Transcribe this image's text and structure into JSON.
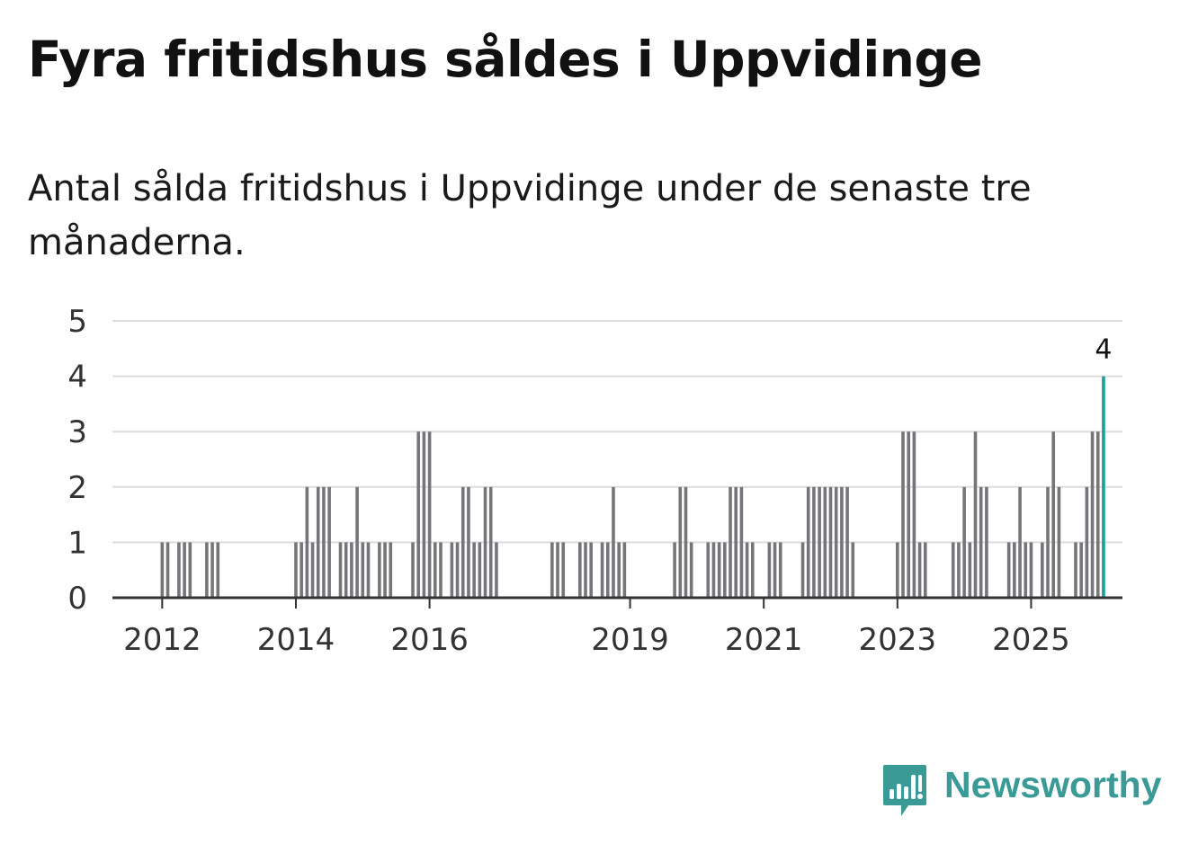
{
  "header": {
    "title": "Fyra fritidshus såldes i Uppvidinge",
    "subtitle": "Antal sålda fritidshus i Uppvidinge under de senaste tre månaderna."
  },
  "brand": {
    "name": "Newsworthy"
  },
  "colors": {
    "bar": "#76767a",
    "highlight": "#1a9e98",
    "grid": "#dddddd",
    "axis": "#333333",
    "brand": "#3a9a96"
  },
  "chart_data": {
    "type": "bar",
    "title": "Antal sålda fritidshus i Uppvidinge",
    "xlabel": "",
    "ylabel": "",
    "ylim": [
      0,
      5
    ],
    "yticks": [
      0,
      1,
      2,
      3,
      4,
      5
    ],
    "start": "2011-04",
    "x_ticks": [
      "2012",
      "2014",
      "2016",
      "2019",
      "2021",
      "2023",
      "2025"
    ],
    "values": [
      0,
      0,
      0,
      0,
      0,
      0,
      0,
      0,
      0,
      1,
      1,
      0,
      1,
      1,
      1,
      0,
      0,
      1,
      1,
      1,
      0,
      0,
      0,
      0,
      0,
      0,
      0,
      0,
      0,
      0,
      0,
      0,
      0,
      1,
      1,
      2,
      1,
      2,
      2,
      2,
      0,
      1,
      1,
      1,
      2,
      1,
      1,
      0,
      1,
      1,
      1,
      0,
      0,
      0,
      1,
      3,
      3,
      3,
      1,
      1,
      0,
      1,
      1,
      2,
      2,
      1,
      1,
      2,
      2,
      1,
      0,
      0,
      0,
      0,
      0,
      0,
      0,
      0,
      0,
      1,
      1,
      1,
      0,
      0,
      1,
      1,
      1,
      0,
      1,
      1,
      2,
      1,
      1,
      0,
      0,
      0,
      0,
      0,
      0,
      0,
      0,
      1,
      2,
      2,
      1,
      0,
      0,
      1,
      1,
      1,
      1,
      2,
      2,
      2,
      1,
      1,
      0,
      0,
      1,
      1,
      1,
      0,
      0,
      0,
      1,
      2,
      2,
      2,
      2,
      2,
      2,
      2,
      2,
      1,
      0,
      0,
      0,
      0,
      0,
      0,
      0,
      1,
      3,
      3,
      3,
      1,
      1,
      0,
      0,
      0,
      0,
      1,
      1,
      2,
      1,
      3,
      2,
      2,
      0,
      0,
      0,
      1,
      1,
      2,
      1,
      1,
      0,
      1,
      2,
      3,
      2,
      0,
      0,
      1,
      1,
      2,
      3,
      3,
      4
    ],
    "highlight": {
      "label": "4",
      "value": 4,
      "index": 178
    }
  }
}
